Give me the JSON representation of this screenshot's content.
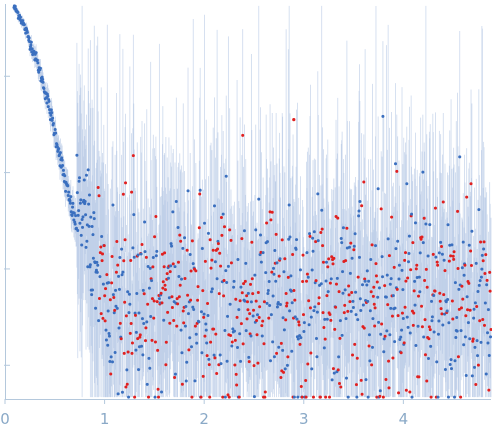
{
  "chart_data": {
    "type": "scatter",
    "title": "",
    "xlabel": "",
    "ylabel": "",
    "xlim": [
      0,
      4.88
    ],
    "ylim": [
      -0.35,
      3.75
    ],
    "x_ticks": [
      {
        "value": 0,
        "label": "0"
      },
      {
        "value": 1,
        "label": "1"
      },
      {
        "value": 2,
        "label": "2"
      },
      {
        "value": 3,
        "label": "3"
      },
      {
        "value": 4,
        "label": "4"
      }
    ],
    "y_ticks": [
      0,
      1,
      2,
      3
    ],
    "y_tick_labels_shown": false,
    "grid": false,
    "colors": {
      "points": "#3a6fbf",
      "points_alt": "#e02020",
      "error_bars": "#b7c9e6",
      "axes": "#b4c8dc",
      "tick_labels": "#8aa9c7"
    },
    "series": [
      {
        "profile": [
          {
            "x": 0.09,
            "y": 3.72
          },
          {
            "x": 0.15,
            "y": 3.62
          },
          {
            "x": 0.2,
            "y": 3.5
          },
          {
            "x": 0.25,
            "y": 3.36
          },
          {
            "x": 0.3,
            "y": 3.22
          },
          {
            "x": 0.35,
            "y": 3.05
          },
          {
            "x": 0.4,
            "y": 2.86
          },
          {
            "x": 0.45,
            "y": 2.65
          },
          {
            "x": 0.5,
            "y": 2.42
          },
          {
            "x": 0.55,
            "y": 2.18
          },
          {
            "x": 0.6,
            "y": 1.92
          },
          {
            "x": 0.65,
            "y": 1.7
          },
          {
            "x": 0.7,
            "y": 1.52
          },
          {
            "x": 0.72,
            "y": 1.45
          }
        ],
        "noise_level": 0.65,
        "noise_spread": 0.55,
        "x_end": 4.88,
        "point_count": 1100,
        "outliers": [
          {
            "x": 2.9,
            "y": 2.55,
            "color": "points_alt"
          }
        ]
      }
    ]
  }
}
